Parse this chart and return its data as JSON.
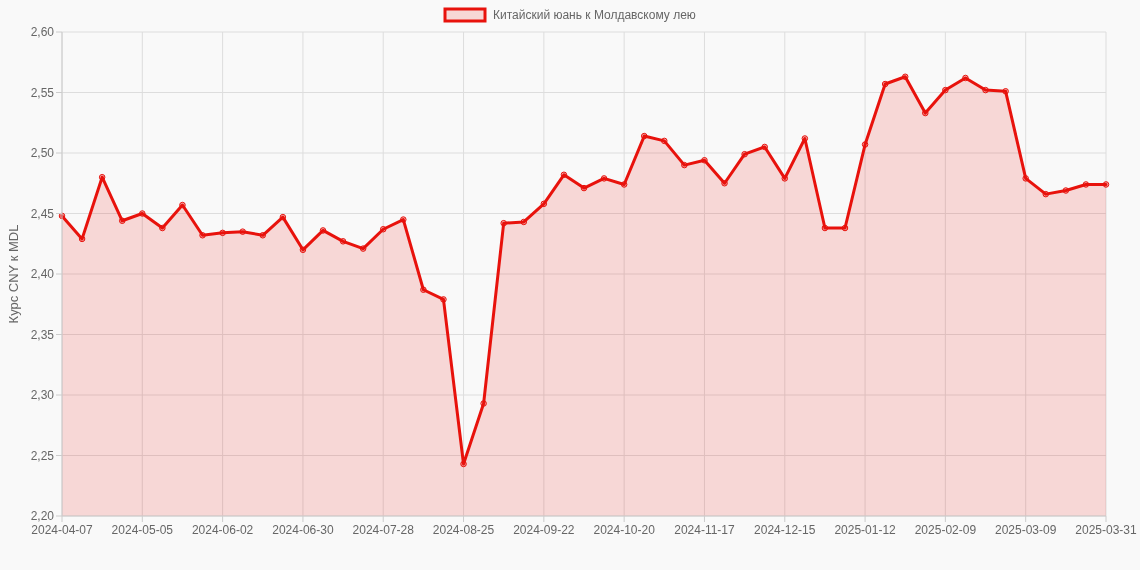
{
  "chart_data": {
    "type": "area",
    "legend": "top",
    "grid": true,
    "marker": "circle",
    "line_style": "solid",
    "ylabel": "Курс CNY к MDL",
    "categories": [
      "2024-04-07",
      null,
      null,
      null,
      "2024-05-05",
      null,
      null,
      null,
      "2024-06-02",
      null,
      null,
      null,
      "2024-06-30",
      null,
      null,
      null,
      "2024-07-28",
      null,
      null,
      null,
      "2024-08-25",
      null,
      null,
      null,
      "2024-09-22",
      null,
      null,
      null,
      "2024-10-20",
      null,
      null,
      null,
      "2024-11-17",
      null,
      null,
      null,
      "2024-12-15",
      null,
      null,
      null,
      "2025-01-12",
      null,
      null,
      null,
      "2025-02-09",
      null,
      null,
      null,
      "2025-03-09",
      null,
      null,
      null,
      "2025-03-31"
    ],
    "ylim": [
      2.2,
      2.6
    ],
    "yticks": [
      {
        "value": 2.2,
        "label": "2,20"
      },
      {
        "value": 2.25,
        "label": "2,25"
      },
      {
        "value": 2.3,
        "label": "2,30"
      },
      {
        "value": 2.35,
        "label": "2,35"
      },
      {
        "value": 2.4,
        "label": "2,40"
      },
      {
        "value": 2.45,
        "label": "2,45"
      },
      {
        "value": 2.5,
        "label": "2,50"
      },
      {
        "value": 2.55,
        "label": "2,55"
      },
      {
        "value": 2.6,
        "label": "2,60"
      }
    ],
    "series": [
      {
        "name": "Китайский юань к Молдавскому лею",
        "color": "#e8120c",
        "values": [
          2.448,
          2.429,
          2.48,
          2.444,
          2.45,
          2.438,
          2.457,
          2.432,
          2.434,
          2.435,
          2.432,
          2.447,
          2.42,
          2.436,
          2.427,
          2.421,
          2.437,
          2.445,
          2.387,
          2.379,
          2.243,
          2.293,
          2.442,
          2.443,
          2.458,
          2.482,
          2.471,
          2.479,
          2.474,
          2.514,
          2.51,
          2.49,
          2.494,
          2.475,
          2.499,
          2.505,
          2.479,
          2.512,
          2.438,
          2.438,
          2.507,
          2.557,
          2.563,
          2.533,
          2.552,
          2.562,
          2.552,
          2.551,
          2.479,
          2.466,
          2.469,
          2.474,
          2.474
        ]
      }
    ]
  }
}
